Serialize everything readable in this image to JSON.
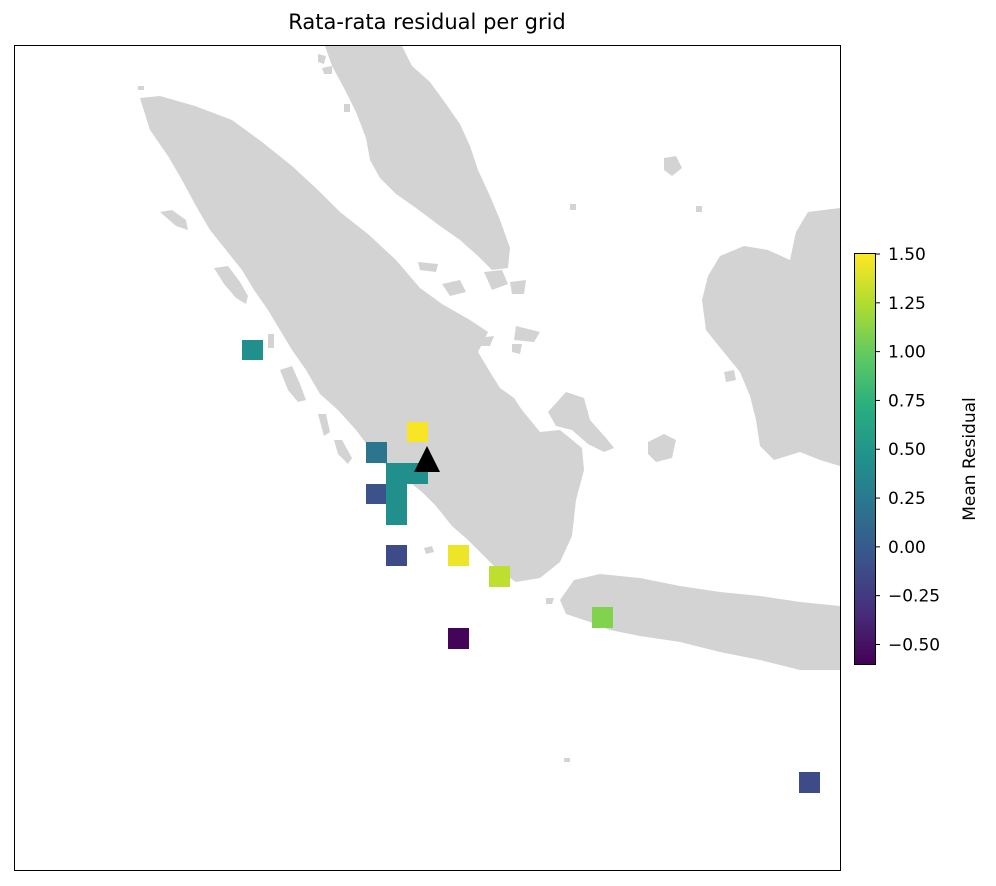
{
  "title": "Rata-rata residual per grid",
  "colors": {
    "land": "#d3d3d3",
    "frame": "#000000",
    "marker": "#000000"
  },
  "colorbar": {
    "label": "Mean Residual",
    "min": -0.6,
    "max": 1.5,
    "colormap": "viridis",
    "ticks": [
      "1.50",
      "1.25",
      "1.00",
      "0.75",
      "0.50",
      "0.25",
      "0.00",
      "−0.25",
      "−0.50"
    ],
    "tick_values": [
      1.5,
      1.25,
      1.0,
      0.75,
      0.5,
      0.25,
      0.0,
      -0.25,
      -0.5
    ]
  },
  "marker": {
    "icon": "triangle-marker-icon"
  },
  "grid_cells": [
    {
      "id": 1,
      "residual": 0.45
    },
    {
      "id": 2,
      "residual": 1.48
    },
    {
      "id": 3,
      "residual": 0.22
    },
    {
      "id": 4,
      "residual": 0.45
    },
    {
      "id": 5,
      "residual": 0.45
    },
    {
      "id": 6,
      "residual": -0.07
    },
    {
      "id": 7,
      "residual": 0.45
    },
    {
      "id": 8,
      "residual": 0.45
    },
    {
      "id": 9,
      "residual": -0.12
    },
    {
      "id": 10,
      "residual": 1.45
    },
    {
      "id": 11,
      "residual": 1.3
    },
    {
      "id": 12,
      "residual": 1.1
    },
    {
      "id": 13,
      "residual": -0.58
    },
    {
      "id": 14,
      "residual": -0.12
    }
  ]
}
